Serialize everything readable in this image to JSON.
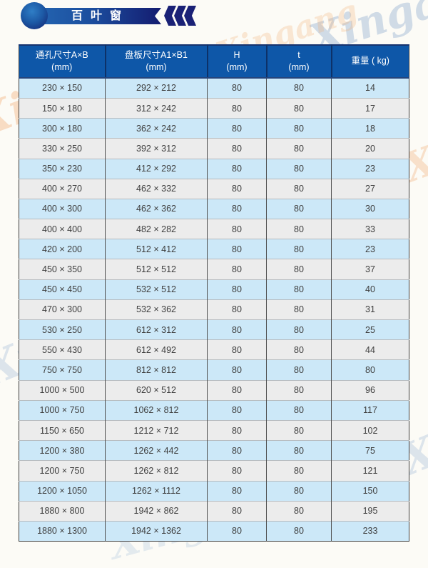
{
  "banner": {
    "title": "百叶窗",
    "bar_gradient_start": "#2466b2",
    "bar_gradient_end": "#141c70",
    "chevron_color": "#1a2176",
    "chevron_icon_count": 3
  },
  "watermark": {
    "text": "Xingang"
  },
  "colors": {
    "header_bg": "#0e57a8",
    "row_blue": "#cce8f8",
    "row_gray": "#ececec",
    "header_text": "#ffffff",
    "body_text": "#3e3e3e"
  },
  "table": {
    "columns": [
      {
        "label": "通孔尺寸A×B",
        "unit": "(mm)"
      },
      {
        "label": "盘板尺寸A1×B1",
        "unit": "(mm)"
      },
      {
        "label": "H",
        "unit": "(mm)"
      },
      {
        "label": "t",
        "unit": "(mm)"
      },
      {
        "label": "重量 ( kg)",
        "unit": ""
      }
    ],
    "rows": [
      [
        "230 × 150",
        "292 × 212",
        "80",
        "80",
        "14"
      ],
      [
        "150 × 180",
        "312 × 242",
        "80",
        "80",
        "17"
      ],
      [
        "300 × 180",
        "362 × 242",
        "80",
        "80",
        "18"
      ],
      [
        "330 × 250",
        "392 × 312",
        "80",
        "80",
        "20"
      ],
      [
        "350 × 230",
        "412 × 292",
        "80",
        "80",
        "23"
      ],
      [
        "400 × 270",
        "462 × 332",
        "80",
        "80",
        "27"
      ],
      [
        "400 × 300",
        "462 × 362",
        "80",
        "80",
        "30"
      ],
      [
        "400 × 400",
        "482 × 282",
        "80",
        "80",
        "33"
      ],
      [
        "420 × 200",
        "512 × 412",
        "80",
        "80",
        "23"
      ],
      [
        "450 × 350",
        "512 × 512",
        "80",
        "80",
        "37"
      ],
      [
        "450 × 450",
        "532 × 512",
        "80",
        "80",
        "40"
      ],
      [
        "470 × 300",
        "532 × 362",
        "80",
        "80",
        "31"
      ],
      [
        "530 × 250",
        "612 × 312",
        "80",
        "80",
        "25"
      ],
      [
        "550 × 430",
        "612 × 492",
        "80",
        "80",
        "44"
      ],
      [
        "750 × 750",
        "812 × 812",
        "80",
        "80",
        "80"
      ],
      [
        "1000 × 500",
        "620 × 512",
        "80",
        "80",
        "96"
      ],
      [
        "1000 × 750",
        "1062 × 812",
        "80",
        "80",
        "117"
      ],
      [
        "1150 × 650",
        "1212 × 712",
        "80",
        "80",
        "102"
      ],
      [
        "1200 × 380",
        "1262 × 442",
        "80",
        "80",
        "75"
      ],
      [
        "1200 × 750",
        "1262 × 812",
        "80",
        "80",
        "121"
      ],
      [
        "1200 × 1050",
        "1262 × 1112",
        "80",
        "80",
        "150"
      ],
      [
        "1880 × 800",
        "1942 × 862",
        "80",
        "80",
        "195"
      ],
      [
        "1880 × 1300",
        "1942 × 1362",
        "80",
        "80",
        "233"
      ]
    ]
  }
}
